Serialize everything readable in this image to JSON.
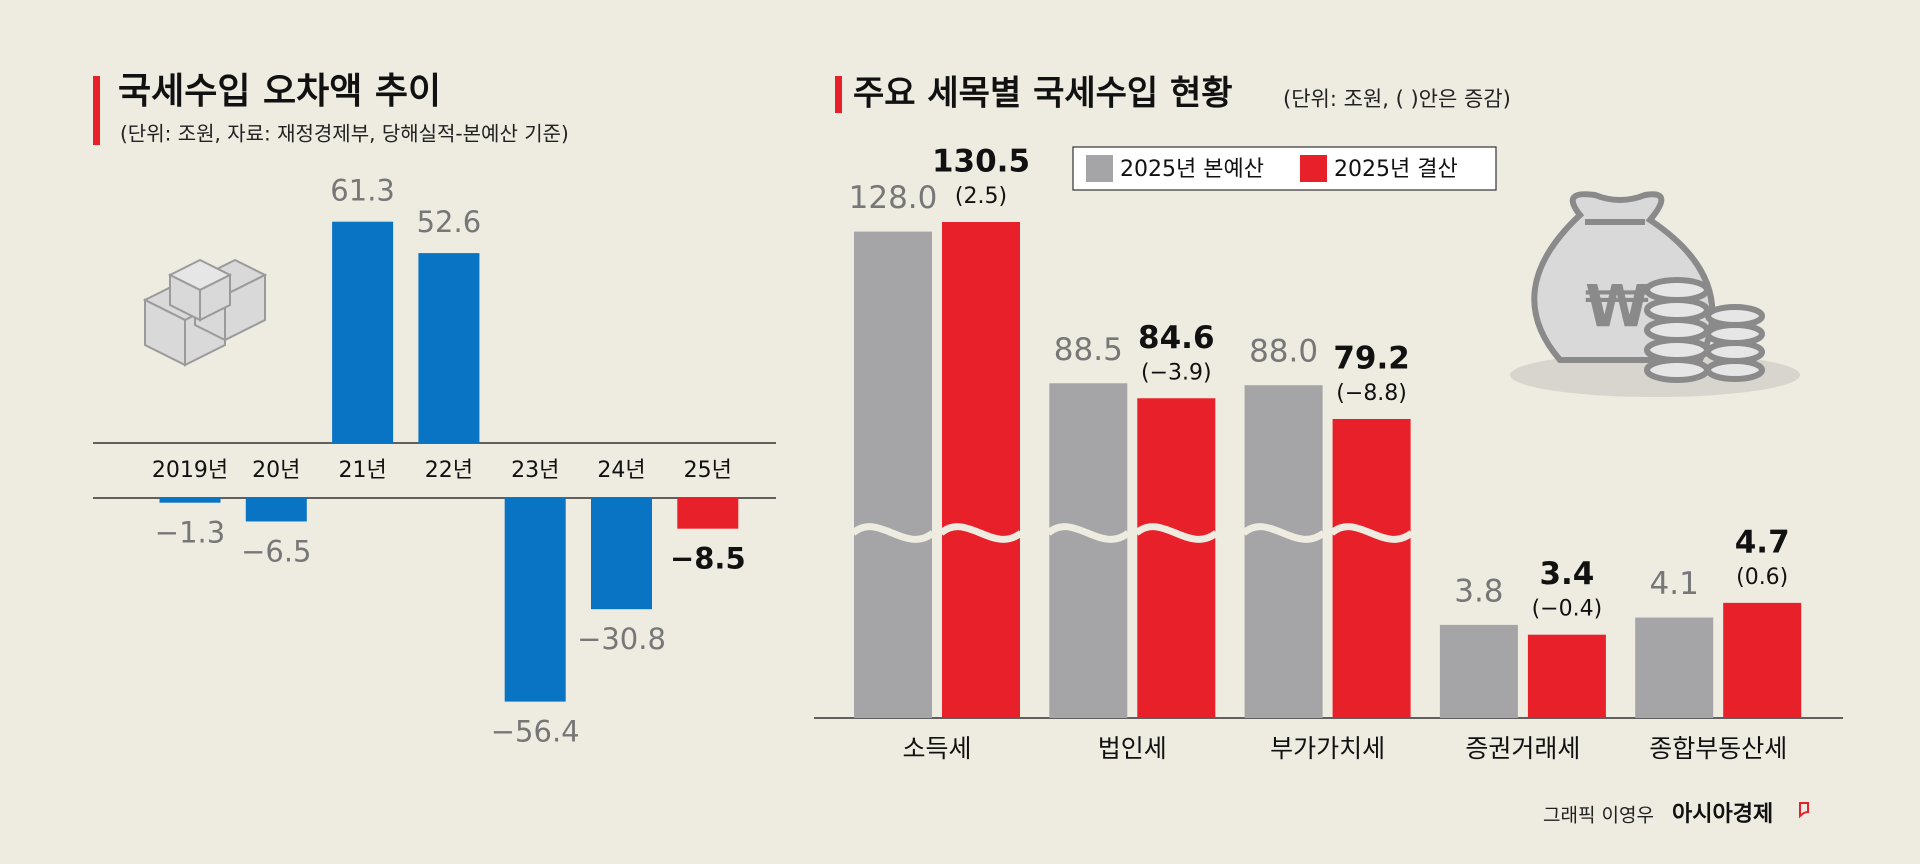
{
  "chart_data": [
    {
      "type": "bar",
      "title": "국세수입 오차액 추이",
      "subtitle": "(단위: 조원, 자료: 재정경제부, 당해실적-본예산 기준)",
      "categories": [
        "2019년",
        "20년",
        "21년",
        "22년",
        "23년",
        "24년",
        "25년"
      ],
      "values": [
        -1.3,
        -6.5,
        61.3,
        52.6,
        -56.4,
        -30.8,
        -8.5
      ],
      "value_labels": [
        "−1.3",
        "−6.5",
        "61.3",
        "52.6",
        "−56.4",
        "−30.8",
        "−8.5"
      ],
      "colors": [
        "#0a74c4",
        "#0a74c4",
        "#0a74c4",
        "#0a74c4",
        "#0a74c4",
        "#0a74c4",
        "#e8202a"
      ]
    },
    {
      "type": "grouped_bar",
      "title": "주요 세목별 국세수입 현황",
      "subtitle": "(단위: 조원, (  )안은 증감)",
      "broken_axis": true,
      "categories": [
        "소득세",
        "법인세",
        "부가가치세",
        "증권거래세",
        "종합부동산세"
      ],
      "series": [
        {
          "name": "2025년 본예산",
          "color": "#a5a5a7",
          "values": [
            128.0,
            88.5,
            88.0,
            3.8,
            4.1
          ],
          "value_labels": [
            "128.0",
            "88.5",
            "88.0",
            "3.8",
            "4.1"
          ]
        },
        {
          "name": "2025년 결산",
          "color": "#e8202a",
          "values": [
            130.5,
            84.6,
            79.2,
            3.4,
            4.7
          ],
          "value_labels": [
            "130.5",
            "84.6",
            "79.2",
            "3.4",
            "4.7"
          ],
          "change_labels": [
            "(2.5)",
            "(−3.9)",
            "(−8.8)",
            "(−0.4)",
            "(0.6)"
          ]
        }
      ]
    }
  ],
  "credit": {
    "author": "그래픽 이영우",
    "brand": "아시아경제"
  }
}
